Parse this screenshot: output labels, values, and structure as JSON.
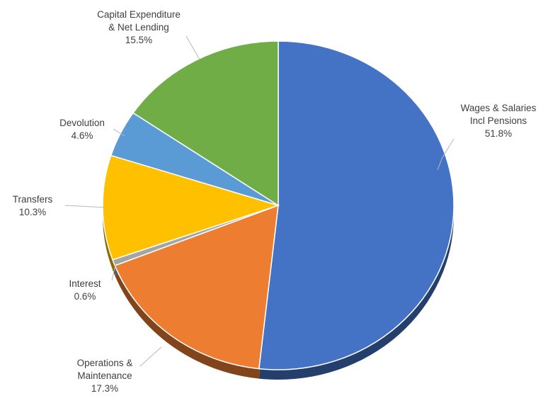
{
  "chart_data": {
    "type": "pie",
    "title": "",
    "slices": [
      {
        "name": "Wages & Salaries Incl Pensions",
        "label_lines": [
          "Wages & Salaries",
          "Incl Pensions"
        ],
        "pct_label": "51.8%",
        "value": 51.8,
        "color": "#4472c4"
      },
      {
        "name": "Operations & Maintenance",
        "label_lines": [
          "Operations &",
          "Maintenance"
        ],
        "pct_label": "17.3%",
        "value": 17.3,
        "color": "#ed7d31"
      },
      {
        "name": "Interest",
        "label_lines": [
          "Interest"
        ],
        "pct_label": "0.6%",
        "value": 0.6,
        "color": "#a5a5a5"
      },
      {
        "name": "Transfers",
        "label_lines": [
          "Transfers"
        ],
        "pct_label": "10.3%",
        "value": 10.3,
        "color": "#ffc000"
      },
      {
        "name": "Devolution",
        "label_lines": [
          "Devolution"
        ],
        "pct_label": "4.6%",
        "value": 4.6,
        "color": "#5b9bd5"
      },
      {
        "name": "Capital Expenditure & Net Lending",
        "label_lines": [
          "Capital Expenditure",
          "& Net Lending"
        ],
        "pct_label": "15.5%",
        "value": 15.5,
        "color": "#70ad47"
      }
    ],
    "start_angle_deg": 0,
    "direction": "clockwise",
    "style": "3d-shadow",
    "legend": "none",
    "data_labels": "outside-with-leader-lines"
  }
}
